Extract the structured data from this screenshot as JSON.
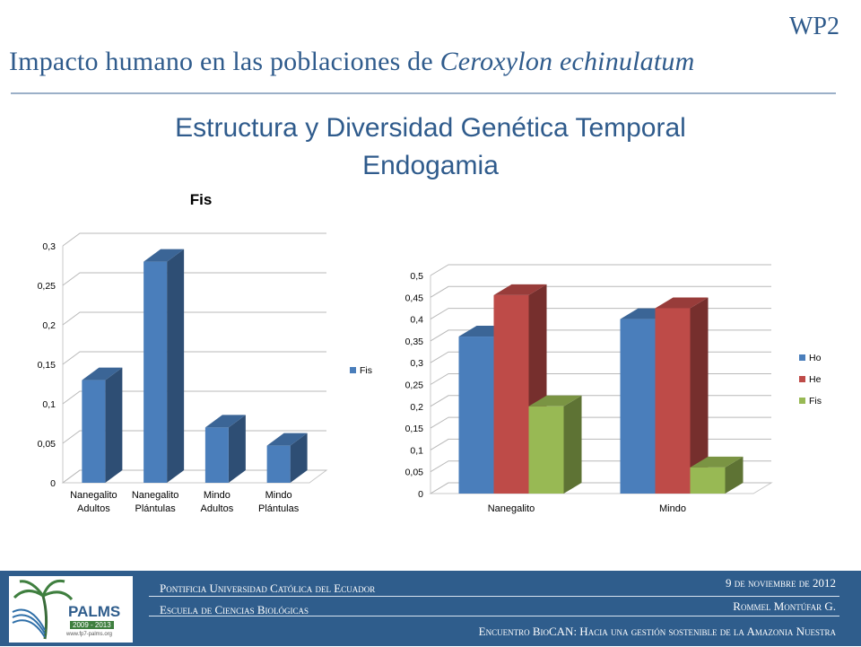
{
  "header": {
    "wp": "WP2",
    "title_prefix": "Impacto humano en las poblaciones de ",
    "title_species": "Ceroxylon echinulatum",
    "subtitle_line1": "Estructura y Diversidad Genética Temporal",
    "subtitle_line2": "Endogamia"
  },
  "chart_data": [
    {
      "type": "bar",
      "title": "Fis",
      "categories": [
        "Nanegalito Adultos",
        "Nanegalito Plántulas",
        "Mindo Adultos",
        "Mindo Plántulas"
      ],
      "category_lines": [
        [
          "Nanegalito",
          "Adultos"
        ],
        [
          "Nanegalito",
          "Plántulas"
        ],
        [
          "Mindo",
          "Adultos"
        ],
        [
          "Mindo",
          "Plántulas"
        ]
      ],
      "series": [
        {
          "name": "Fis",
          "values": [
            0.13,
            0.28,
            0.07,
            0.047
          ],
          "color": "#4a7ebb"
        }
      ],
      "yticks": [
        "0",
        "0,05",
        "0,1",
        "0,15",
        "0,2",
        "0,25",
        "0,3"
      ],
      "ylim": [
        0,
        0.3
      ],
      "grid": true,
      "legend": "right",
      "style": "3d"
    },
    {
      "type": "bar",
      "title": "",
      "categories": [
        "Nanegalito",
        "Mindo"
      ],
      "series": [
        {
          "name": "Ho",
          "values": [
            0.36,
            0.4
          ],
          "color": "#4a7ebb"
        },
        {
          "name": "He",
          "values": [
            0.455,
            0.425
          ],
          "color": "#be4b48"
        },
        {
          "name": "Fis",
          "values": [
            0.2,
            0.06
          ],
          "color": "#98b954"
        }
      ],
      "yticks": [
        "0",
        "0,05",
        "0,1",
        "0,15",
        "0,2",
        "0,25",
        "0,3",
        "0,35",
        "0,4",
        "0,45",
        "0,5"
      ],
      "ylim": [
        0,
        0.5
      ],
      "grid": true,
      "legend": "right",
      "style": "3d"
    }
  ],
  "footer": {
    "university": "Pontificia Universidad Católica del Ecuador",
    "school": "Escuela de Ciencias Biológicas",
    "date": "9 de noviembre de 2012",
    "author": "Rommel Montúfar G.",
    "event": "Encuentro BioCAN: Hacia una gestión sostenible de la Amazonia Nuestra",
    "logo_text": "PALMS",
    "logo_years": "2009 - 2013",
    "logo_url": "www.fp7-palms.org"
  }
}
